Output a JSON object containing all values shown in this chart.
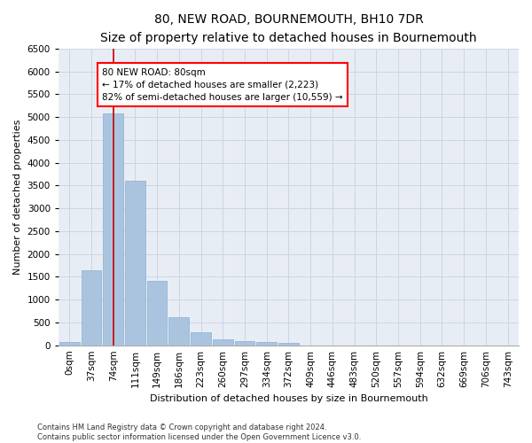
{
  "title": "80, NEW ROAD, BOURNEMOUTH, BH10 7DR",
  "subtitle": "Size of property relative to detached houses in Bournemouth",
  "xlabel": "Distribution of detached houses by size in Bournemouth",
  "ylabel": "Number of detached properties",
  "footer_line1": "Contains HM Land Registry data © Crown copyright and database right 2024.",
  "footer_line2": "Contains public sector information licensed under the Open Government Licence v3.0.",
  "bar_labels": [
    "0sqm",
    "37sqm",
    "74sqm",
    "111sqm",
    "149sqm",
    "186sqm",
    "223sqm",
    "260sqm",
    "297sqm",
    "334sqm",
    "372sqm",
    "409sqm",
    "446sqm",
    "483sqm",
    "520sqm",
    "557sqm",
    "594sqm",
    "632sqm",
    "669sqm",
    "706sqm",
    "743sqm"
  ],
  "bar_values": [
    75,
    1650,
    5080,
    3600,
    1420,
    620,
    290,
    130,
    90,
    65,
    55,
    0,
    0,
    0,
    0,
    0,
    0,
    0,
    0,
    0,
    0
  ],
  "bar_color": "#aac4df",
  "bar_edge_color": "#8aafd0",
  "ylim": [
    0,
    6500
  ],
  "yticks": [
    0,
    500,
    1000,
    1500,
    2000,
    2500,
    3000,
    3500,
    4000,
    4500,
    5000,
    5500,
    6000,
    6500
  ],
  "property_line_x": 2.0,
  "annotation_text_line1": "80 NEW ROAD: 80sqm",
  "annotation_text_line2": "← 17% of detached houses are smaller (2,223)",
  "annotation_text_line3": "82% of semi-detached houses are larger (10,559) →",
  "annotation_box_color": "white",
  "annotation_box_edge": "red",
  "vline_color": "#cc0000",
  "grid_color": "#ccd5e5",
  "background_color": "#e8edf5",
  "figure_background": "#ffffff",
  "title_fontsize": 10,
  "subtitle_fontsize": 8.5,
  "ylabel_fontsize": 8,
  "xlabel_fontsize": 8,
  "tick_fontsize": 7.5,
  "annot_fontsize": 7.5,
  "footer_fontsize": 6
}
